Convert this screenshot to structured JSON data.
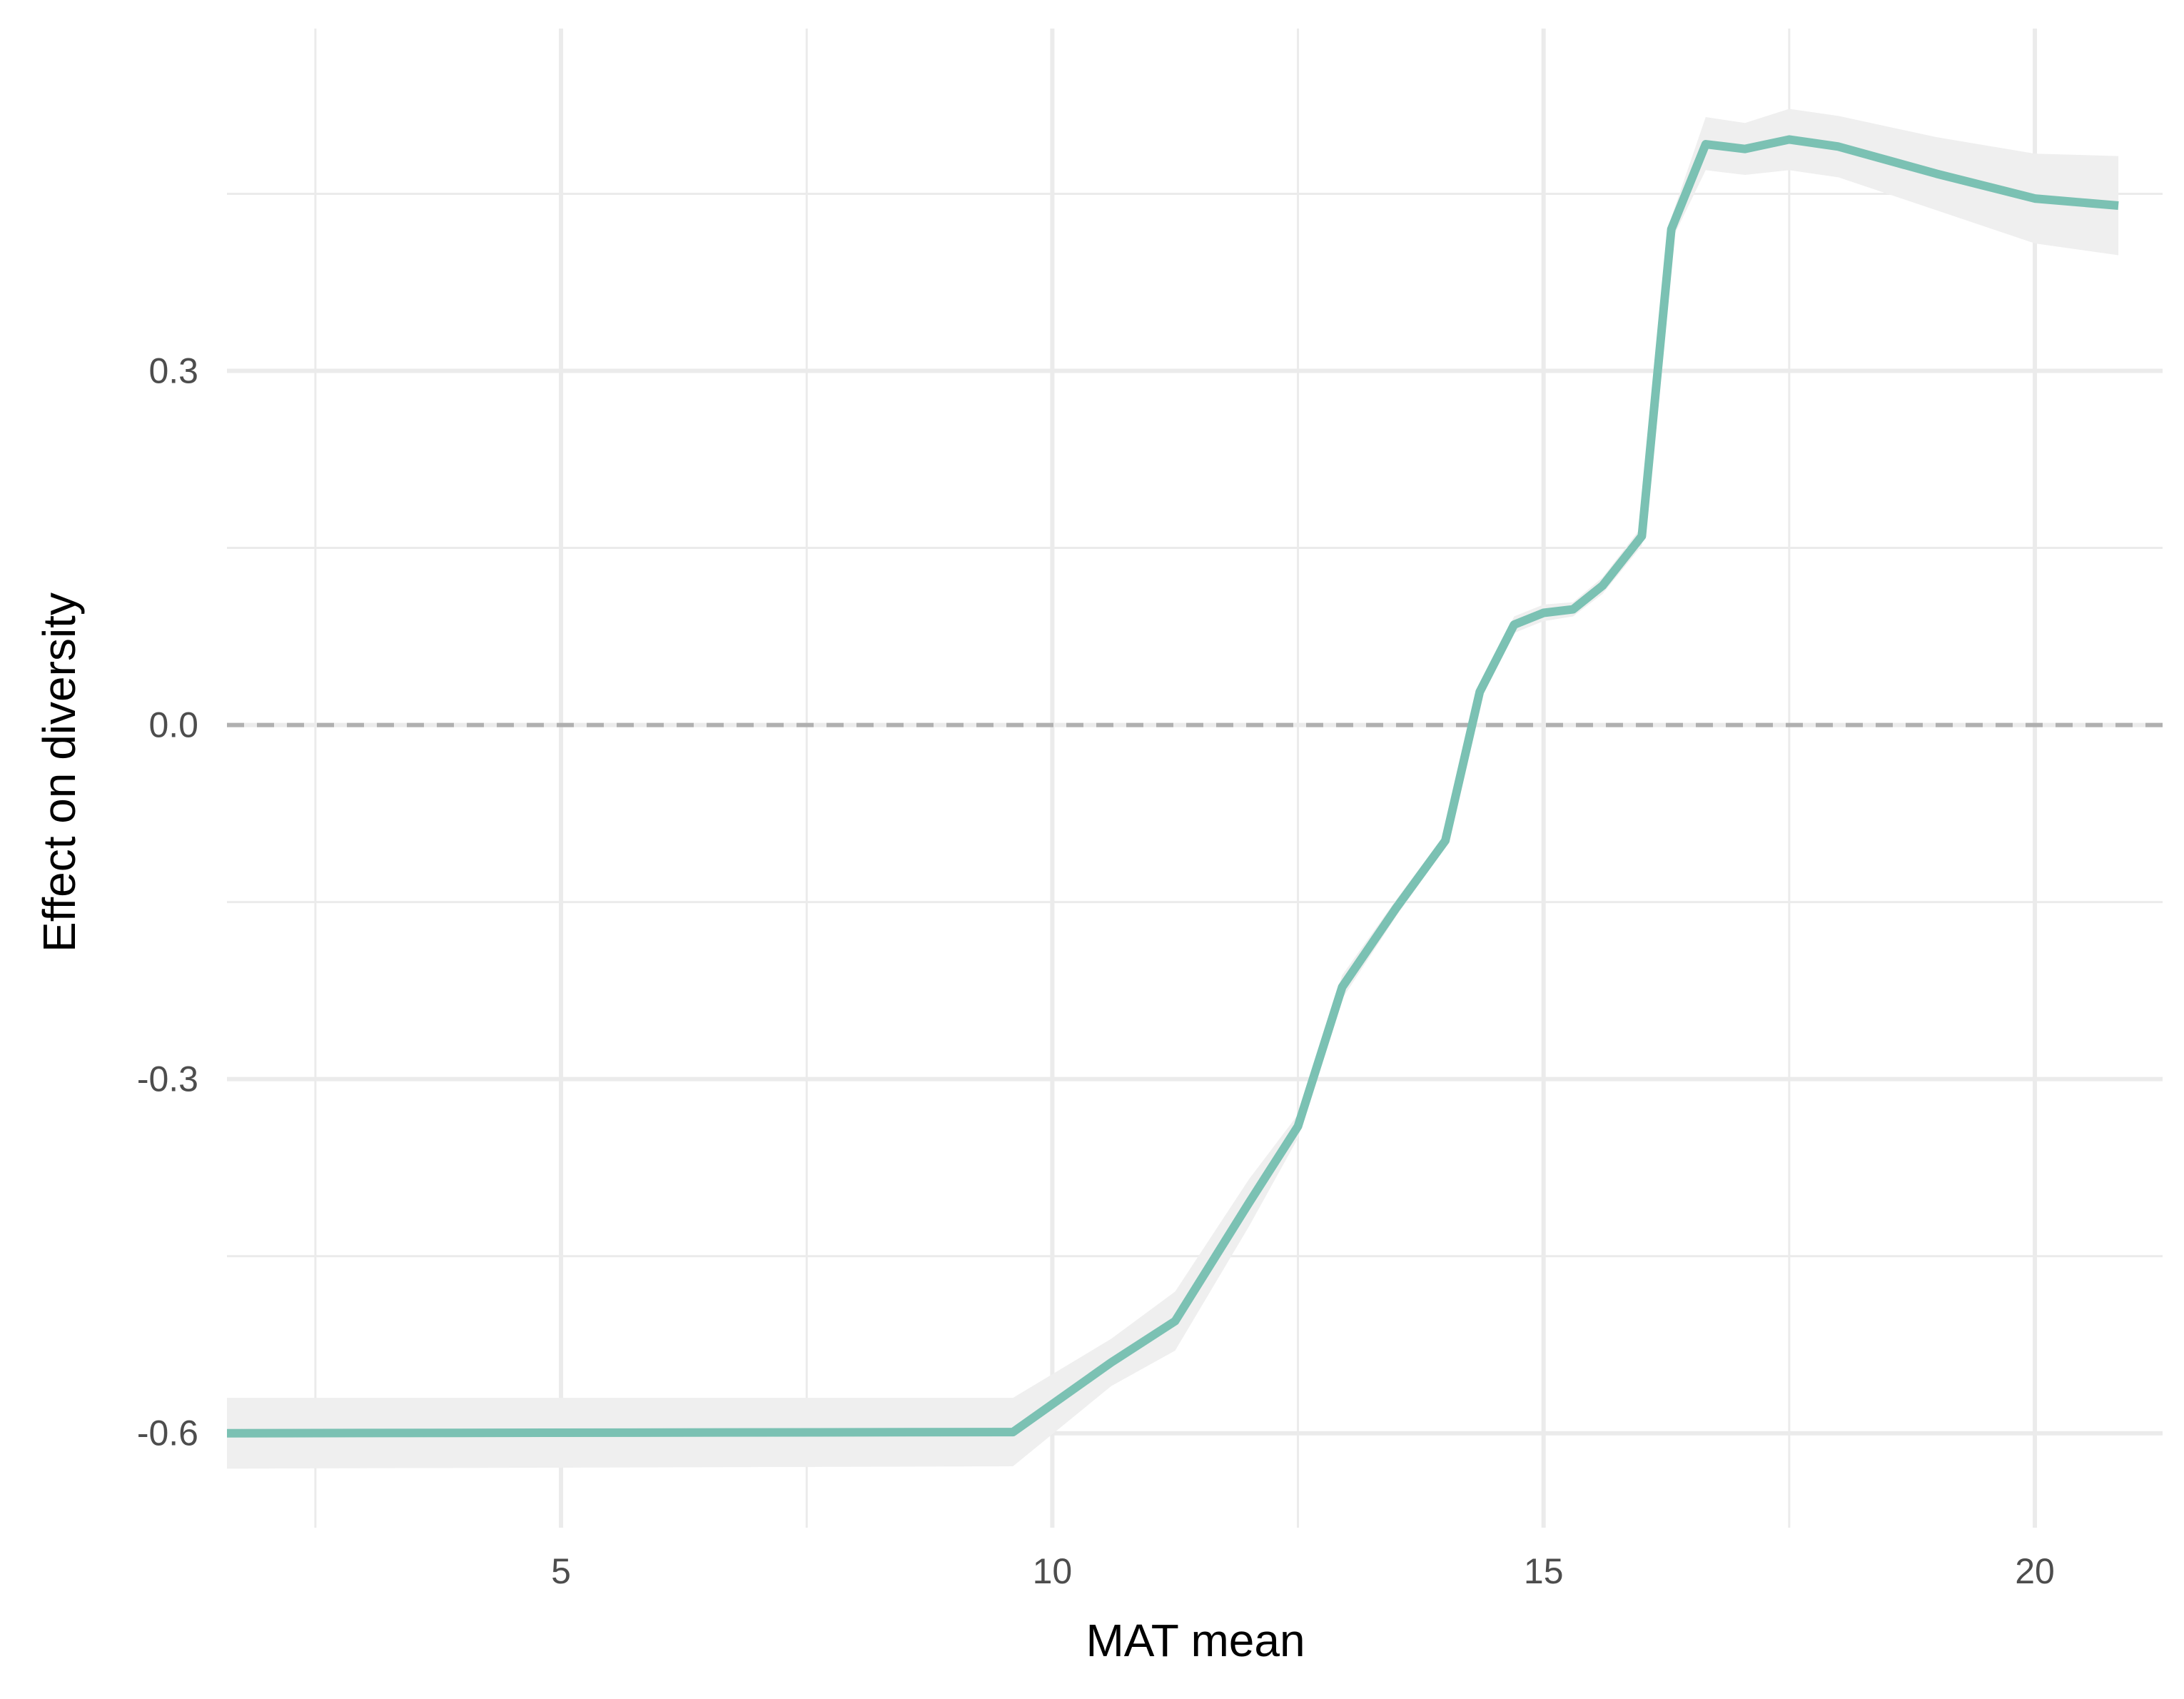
{
  "chart_data": {
    "type": "line",
    "title": "",
    "xlabel": "MAT mean",
    "ylabel": "Effect on diversity",
    "xlim": [
      1.6,
      21.3
    ],
    "ylim": [
      -0.68,
      0.59
    ],
    "x_ticks": [
      5,
      10,
      15,
      20
    ],
    "x_tick_labels": [
      "5",
      "10",
      "15",
      "20"
    ],
    "y_ticks": [
      -0.6,
      -0.3,
      0.0,
      0.3
    ],
    "y_tick_labels": [
      "-0.6",
      "-0.3",
      "0.0",
      "0.3"
    ],
    "x_minor_grid": [
      2.5,
      7.5,
      12.5,
      17.5
    ],
    "y_minor_grid": [
      -0.45,
      -0.15,
      0.15,
      0.45
    ],
    "grid": true,
    "reference_line": {
      "y": 0.0,
      "style": "dashed",
      "color": "#b0b0b0"
    },
    "series": [
      {
        "color": "#7bc1b3",
        "ribbon_color": "#efefef",
        "points": [
          {
            "x": 1.6,
            "y": -0.6,
            "lo": -0.63,
            "hi": -0.57
          },
          {
            "x": 9.6,
            "y": -0.599,
            "lo": -0.628,
            "hi": -0.57
          },
          {
            "x": 10.6,
            "y": -0.54,
            "lo": -0.56,
            "hi": -0.52
          },
          {
            "x": 11.25,
            "y": -0.505,
            "lo": -0.53,
            "hi": -0.48
          },
          {
            "x": 12.0,
            "y": -0.405,
            "lo": -0.425,
            "hi": -0.385
          },
          {
            "x": 12.5,
            "y": -0.34,
            "lo": -0.35,
            "hi": -0.33
          },
          {
            "x": 12.95,
            "y": -0.222,
            "lo": -0.232,
            "hi": -0.212
          },
          {
            "x": 13.5,
            "y": -0.155,
            "lo": -0.162,
            "hi": -0.148
          },
          {
            "x": 14.0,
            "y": -0.098,
            "lo": -0.104,
            "hi": -0.092
          },
          {
            "x": 14.35,
            "y": 0.028,
            "lo": 0.022,
            "hi": 0.034
          },
          {
            "x": 14.7,
            "y": 0.085,
            "lo": 0.078,
            "hi": 0.092
          },
          {
            "x": 15.0,
            "y": 0.095,
            "lo": 0.088,
            "hi": 0.102
          },
          {
            "x": 15.3,
            "y": 0.098,
            "lo": 0.092,
            "hi": 0.104
          },
          {
            "x": 15.6,
            "y": 0.118,
            "lo": 0.111,
            "hi": 0.125
          },
          {
            "x": 16.0,
            "y": 0.16,
            "lo": 0.152,
            "hi": 0.168
          },
          {
            "x": 16.3,
            "y": 0.42,
            "lo": 0.41,
            "hi": 0.43
          },
          {
            "x": 16.65,
            "y": 0.492,
            "lo": 0.47,
            "hi": 0.515
          },
          {
            "x": 17.05,
            "y": 0.488,
            "lo": 0.466,
            "hi": 0.51
          },
          {
            "x": 17.5,
            "y": 0.496,
            "lo": 0.47,
            "hi": 0.522
          },
          {
            "x": 18.0,
            "y": 0.49,
            "lo": 0.464,
            "hi": 0.516
          },
          {
            "x": 19.0,
            "y": 0.467,
            "lo": 0.436,
            "hi": 0.498
          },
          {
            "x": 20.0,
            "y": 0.446,
            "lo": 0.408,
            "hi": 0.484
          },
          {
            "x": 20.85,
            "y": 0.44,
            "lo": 0.398,
            "hi": 0.482
          }
        ]
      }
    ]
  }
}
